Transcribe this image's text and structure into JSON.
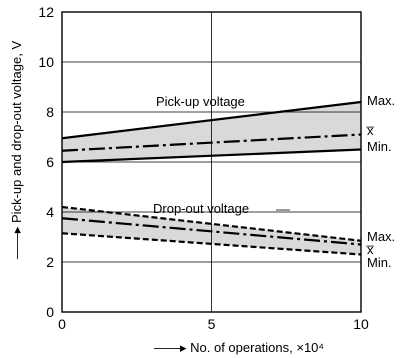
{
  "chart_data": {
    "type": "line",
    "xlabel": "No. of operations, ×10⁴",
    "ylabel": "Pick-up and drop-out voltage, V",
    "xlim": [
      0,
      10
    ],
    "ylim": [
      0,
      12
    ],
    "x_ticks": [
      "0",
      "5",
      "10"
    ],
    "y_ticks": [
      "0",
      "2",
      "4",
      "6",
      "8",
      "10",
      "12"
    ],
    "grid": true,
    "groups": [
      {
        "label": "Pick-up voltage",
        "series": [
          {
            "name": "Max.",
            "style": "solid",
            "x": [
              0,
              10
            ],
            "y": [
              6.95,
              8.4
            ]
          },
          {
            "name": "x̅",
            "style": "dash-dot",
            "x": [
              0,
              10
            ],
            "y": [
              6.45,
              7.1
            ]
          },
          {
            "name": "Min.",
            "style": "solid",
            "x": [
              0,
              10
            ],
            "y": [
              6.0,
              6.5
            ]
          }
        ]
      },
      {
        "label": "Drop-out voltage",
        "series": [
          {
            "name": "Max.",
            "style": "dashed",
            "x": [
              0,
              10
            ],
            "y": [
              4.2,
              2.85
            ]
          },
          {
            "name": "x̅",
            "style": "dash-dot",
            "x": [
              0,
              10
            ],
            "y": [
              3.75,
              2.7
            ]
          },
          {
            "name": "Min.",
            "style": "dashed",
            "x": [
              0,
              10
            ],
            "y": [
              3.15,
              2.3
            ]
          }
        ]
      }
    ],
    "band_color": "#d9d9d9",
    "line_color": "#000000"
  }
}
